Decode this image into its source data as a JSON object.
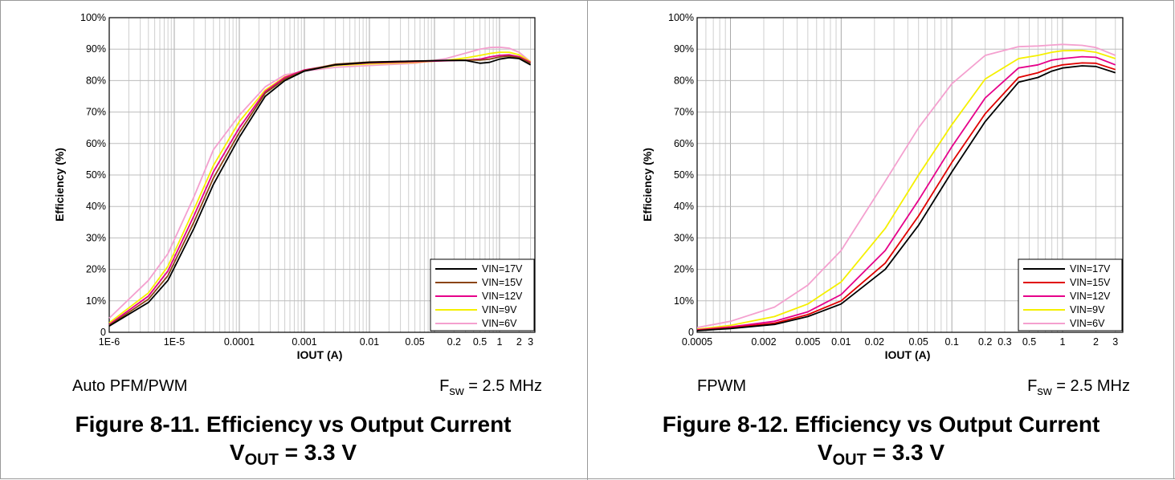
{
  "figures": [
    {
      "mode_label": "Auto PFM/PWM",
      "fsw_symbol": "F",
      "fsw_sub": "sw",
      "fsw_value": " = 2.5 MHz",
      "title": "Figure 8-11. Efficiency vs Output Current",
      "vout_symbol": "V",
      "vout_sub": "OUT",
      "vout_value": " = 3.3 V"
    },
    {
      "mode_label": "FPWM",
      "fsw_symbol": "F",
      "fsw_sub": "sw",
      "fsw_value": " = 2.5 MHz",
      "title": "Figure 8-12. Efficiency vs Output Current",
      "vout_symbol": "V",
      "vout_sub": "OUT",
      "vout_value": " = 3.3 V"
    }
  ],
  "chart_data": [
    {
      "type": "line",
      "xscale": "log",
      "xlim": [
        1e-06,
        3.5
      ],
      "ylim": [
        0,
        100
      ],
      "xlabel": "IOUT (A)",
      "ylabel": "Efficiency (%)",
      "x_ticks": [
        1e-06,
        1e-05,
        0.0001,
        0.001,
        0.01,
        0.05,
        0.2,
        0.5,
        1,
        2,
        3
      ],
      "x_tick_labels": [
        "1E-6",
        "1E-5",
        "0.0001",
        "0.001",
        "0.01",
        "0.05",
        "0.2",
        "0.5",
        "1",
        "2",
        "3"
      ],
      "y_ticks": [
        0,
        10,
        20,
        30,
        40,
        50,
        60,
        70,
        80,
        90,
        100
      ],
      "y_tick_labels": [
        "0",
        "10%",
        "20%",
        "30%",
        "40%",
        "50%",
        "60%",
        "70%",
        "80%",
        "90%",
        "100%"
      ],
      "legend_position": "bottom-right",
      "series": [
        {
          "name": "VIN=17V",
          "color": "#000000",
          "x": [
            1e-06,
            4e-06,
            8e-06,
            2e-05,
            4e-05,
            0.0001,
            0.00025,
            0.0005,
            0.001,
            0.003,
            0.01,
            0.05,
            0.15,
            0.3,
            0.5,
            0.7,
            1,
            1.4,
            2,
            3
          ],
          "y": [
            2,
            9.5,
            16.5,
            33,
            47,
            62,
            75,
            80,
            83,
            85,
            85.8,
            86.2,
            86.4,
            86.4,
            85.5,
            85.8,
            86.8,
            87.3,
            87,
            85
          ]
        },
        {
          "name": "VIN=15V",
          "color": "#8b4513",
          "x": [
            1e-06,
            4e-06,
            8e-06,
            2e-05,
            4e-05,
            0.0001,
            0.00025,
            0.0005,
            0.001,
            0.003,
            0.01,
            0.05,
            0.15,
            0.3,
            0.5,
            0.7,
            1,
            1.4,
            2,
            3
          ],
          "y": [
            2.2,
            10.5,
            18,
            35,
            49,
            63.5,
            76,
            80.5,
            83.2,
            85.2,
            85.9,
            86.2,
            86.4,
            86.5,
            86.5,
            86.8,
            87.5,
            87.8,
            87.3,
            85.5
          ]
        },
        {
          "name": "VIN=12V",
          "color": "#e6008a",
          "x": [
            1e-06,
            4e-06,
            8e-06,
            2e-05,
            4e-05,
            0.0001,
            0.00025,
            0.0005,
            0.001,
            0.003,
            0.01,
            0.05,
            0.15,
            0.3,
            0.5,
            0.7,
            1,
            1.4,
            2,
            3
          ],
          "y": [
            2.5,
            11.5,
            19.5,
            37,
            51,
            65,
            76.5,
            81,
            83.4,
            85,
            85.6,
            86,
            86.3,
            86.5,
            86.8,
            87.5,
            88,
            88.2,
            87.6,
            85.8
          ]
        },
        {
          "name": "VIN=9V",
          "color": "#f5f000",
          "x": [
            1e-06,
            4e-06,
            8e-06,
            2e-05,
            4e-05,
            0.0001,
            0.00025,
            0.0005,
            0.001,
            0.003,
            0.01,
            0.05,
            0.15,
            0.3,
            0.5,
            0.7,
            1,
            1.4,
            2,
            3
          ],
          "y": [
            3,
            12.5,
            21,
            39,
            53,
            67,
            77,
            81.2,
            83.2,
            84.8,
            85.3,
            85.8,
            86.4,
            87.2,
            88,
            88.6,
            89,
            89,
            88.2,
            86
          ]
        },
        {
          "name": "VIN=6V",
          "color": "#f4a0cf",
          "x": [
            1e-06,
            4e-06,
            8e-06,
            2e-05,
            4e-05,
            0.0001,
            0.00025,
            0.0005,
            0.001,
            0.003,
            0.01,
            0.05,
            0.15,
            0.3,
            0.5,
            0.7,
            1,
            1.4,
            2,
            3
          ],
          "y": [
            4.5,
            16.5,
            25,
            43,
            58,
            69,
            78,
            81.8,
            83,
            84.2,
            84.8,
            85.5,
            87,
            88.7,
            90,
            90.5,
            90.6,
            90.3,
            89,
            86
          ]
        }
      ]
    },
    {
      "type": "line",
      "xscale": "log",
      "xlim": [
        0.0005,
        3.5
      ],
      "ylim": [
        0,
        100
      ],
      "xlabel": "IOUT (A)",
      "ylabel": "Efficiency (%)",
      "x_ticks": [
        0.0005,
        0.002,
        0.005,
        0.01,
        0.02,
        0.05,
        0.1,
        0.2,
        0.3,
        0.5,
        1,
        2,
        3
      ],
      "x_tick_labels": [
        "0.0005",
        "0.002",
        "0.005",
        "0.01",
        "0.02",
        "0.05",
        "0.1",
        "0.2",
        "0.3",
        "0.5",
        "1",
        "2",
        "3"
      ],
      "y_ticks": [
        0,
        10,
        20,
        30,
        40,
        50,
        60,
        70,
        80,
        90,
        100
      ],
      "y_tick_labels": [
        "0",
        "10%",
        "20%",
        "30%",
        "40%",
        "50%",
        "60%",
        "70%",
        "80%",
        "90%",
        "100%"
      ],
      "legend_position": "bottom-right",
      "series": [
        {
          "name": "VIN=17V",
          "color": "#000000",
          "x": [
            0.0005,
            0.001,
            0.0025,
            0.005,
            0.01,
            0.025,
            0.05,
            0.1,
            0.2,
            0.4,
            0.6,
            0.8,
            1,
            1.5,
            2,
            3
          ],
          "y": [
            0.5,
            1.2,
            2.5,
            5,
            9,
            20,
            34,
            51,
            67,
            79.5,
            81,
            83,
            84,
            84.7,
            84.5,
            82.5
          ]
        },
        {
          "name": "VIN=15V",
          "color": "#e00000",
          "x": [
            0.0005,
            0.001,
            0.0025,
            0.005,
            0.01,
            0.025,
            0.05,
            0.1,
            0.2,
            0.4,
            0.6,
            0.8,
            1,
            1.5,
            2,
            3
          ],
          "y": [
            0.6,
            1.4,
            2.9,
            5.6,
            10,
            22,
            37,
            54,
            69.5,
            81,
            82.5,
            84.2,
            85,
            85.6,
            85.5,
            83.5
          ]
        },
        {
          "name": "VIN=12V",
          "color": "#e6008a",
          "x": [
            0.0005,
            0.001,
            0.0025,
            0.005,
            0.01,
            0.025,
            0.05,
            0.1,
            0.2,
            0.4,
            0.6,
            0.8,
            1,
            1.5,
            2,
            3
          ],
          "y": [
            0.8,
            1.7,
            3.5,
            6.5,
            12,
            26,
            42,
            59,
            74.5,
            84,
            85,
            86.5,
            87,
            87.6,
            87.4,
            85
          ]
        },
        {
          "name": "VIN=9V",
          "color": "#f5f000",
          "x": [
            0.0005,
            0.001,
            0.0025,
            0.005,
            0.01,
            0.025,
            0.05,
            0.1,
            0.2,
            0.4,
            0.6,
            0.8,
            1,
            1.5,
            2,
            3
          ],
          "y": [
            1.0,
            2.2,
            5,
            9,
            16,
            33,
            50,
            66,
            80.5,
            87,
            88,
            89,
            89.5,
            89.6,
            89,
            87
          ]
        },
        {
          "name": "VIN=6V",
          "color": "#f4a0cf",
          "x": [
            0.0005,
            0.001,
            0.0025,
            0.005,
            0.01,
            0.025,
            0.05,
            0.1,
            0.2,
            0.4,
            0.6,
            0.8,
            1,
            1.5,
            2,
            3
          ],
          "y": [
            1.5,
            3.5,
            8,
            15,
            26,
            48,
            65,
            79,
            88,
            90.8,
            91,
            91.3,
            91.5,
            91.2,
            90.5,
            88
          ]
        }
      ]
    }
  ]
}
